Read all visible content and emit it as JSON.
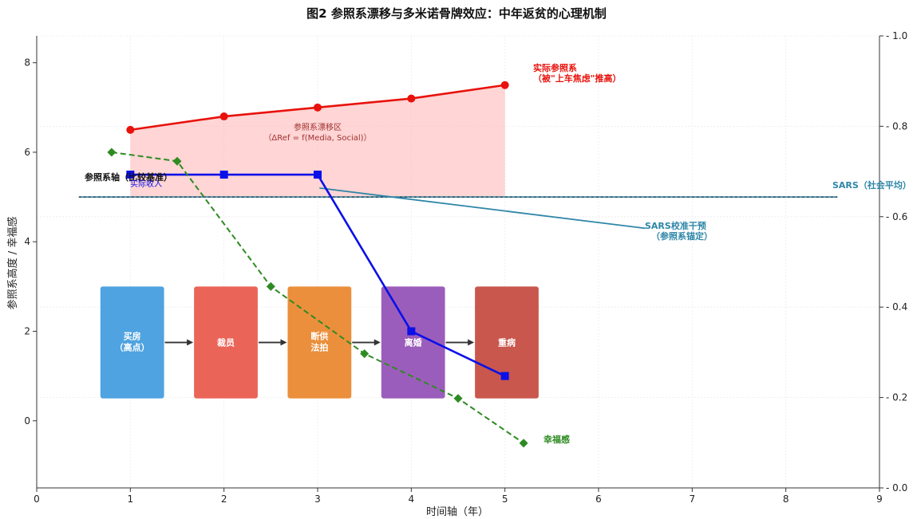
{
  "chart_data": {
    "type": "line",
    "title": "图2  参照系漂移与多米诺骨牌效应：中年返贫的心理机制",
    "xlabel": "时间轴（年）",
    "ylabel": "参照系高度 / 幸福感",
    "xlim": [
      0,
      9
    ],
    "ylim": [
      -1.5,
      8.6
    ],
    "y2lim": [
      0.0,
      1.0
    ],
    "x_ticks": [
      0,
      1,
      2,
      3,
      4,
      5,
      6,
      7,
      8,
      9
    ],
    "y_ticks": [
      0,
      2,
      4,
      6,
      8
    ],
    "y2_ticks": [
      "0.0",
      "0.2",
      "0.4",
      "0.6",
      "0.8",
      "1.0"
    ],
    "grid": true,
    "series": [
      {
        "name": "实际参照系",
        "color": "#e8120c",
        "style": "solid",
        "marker": "circle",
        "x": [
          1,
          2,
          3,
          4,
          5
        ],
        "y": [
          6.5,
          6.8,
          7.0,
          7.2,
          7.5
        ]
      },
      {
        "name": "实际收入",
        "color": "#0a10e8",
        "style": "solid",
        "marker": "square",
        "x": [
          1,
          2,
          3,
          4,
          5
        ],
        "y": [
          5.5,
          5.5,
          5.5,
          2.0,
          1.0
        ]
      },
      {
        "name": "幸福感",
        "color": "#2e8b22",
        "style": "dashed",
        "marker": "diamond",
        "x": [
          0.8,
          1.5,
          2.5,
          3.5,
          4.5,
          5.2
        ],
        "y": [
          6.0,
          5.8,
          3.0,
          1.5,
          0.5,
          -0.5
        ]
      }
    ],
    "hline": {
      "y": 5.0,
      "x_from": 0.45,
      "x_to": 8.55,
      "label": "SARS（社会平均）",
      "color": "#2e86a8"
    },
    "fill_region": {
      "x_from": 1,
      "x_to": 5,
      "y_bottom": 5.0,
      "label_line1": "参照系漂移区",
      "label_line2": "（ΔRef = f(Media, Social)）"
    },
    "annotations": {
      "ref_line1": "实际参照系",
      "ref_line2": "（被\"上车焦虑\"推高）",
      "baseline_label": "参照系轴（比较基准）",
      "income_label": "实际收入",
      "sars_label_line1": "SARS校准干预",
      "sars_label_line2": "（参照系锚定）",
      "happiness_label": "幸福感"
    },
    "domino_boxes": [
      {
        "label_line1": "买房",
        "label_line2": "（高点）",
        "color": "#4fa3e0",
        "x_from": 0.68,
        "x_to": 1.36
      },
      {
        "label_line1": "裁员",
        "label_line2": "",
        "color": "#eb6458",
        "x_from": 1.68,
        "x_to": 2.36
      },
      {
        "label_line1": "断供",
        "label_line2": "法拍",
        "color": "#eb8f3c",
        "x_from": 2.68,
        "x_to": 3.36
      },
      {
        "label_line1": "离婚",
        "label_line2": "",
        "color": "#9b5dbb",
        "x_from": 3.68,
        "x_to": 4.36
      },
      {
        "label_line1": "重病",
        "label_line2": "",
        "color": "#c9574d",
        "x_from": 4.68,
        "x_to": 5.36
      }
    ],
    "domino_y_range": [
      0.5,
      3.0
    ]
  }
}
